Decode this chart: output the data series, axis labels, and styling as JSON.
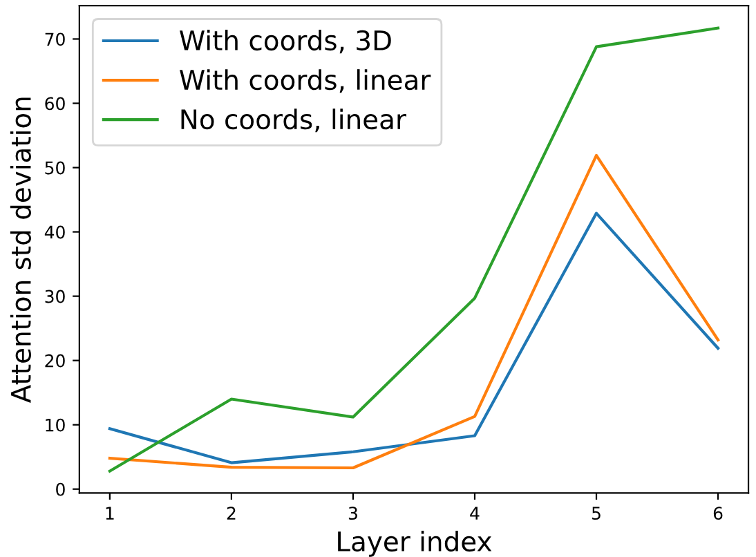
{
  "chart_data": {
    "type": "line",
    "xlabel": "Layer index",
    "ylabel": "Attention std deviation",
    "x": [
      1,
      2,
      3,
      4,
      5,
      6
    ],
    "series": [
      {
        "name": "With coords, 3D",
        "color": "#1f77b4",
        "values": [
          9.4,
          4.1,
          5.8,
          8.3,
          42.9,
          21.9
        ]
      },
      {
        "name": "With coords, linear",
        "color": "#ff7f0e",
        "values": [
          4.8,
          3.4,
          3.3,
          11.3,
          51.9,
          23.2
        ]
      },
      {
        "name": "No coords, linear",
        "color": "#2ca02c",
        "values": [
          2.8,
          14.0,
          11.2,
          29.7,
          68.8,
          71.7
        ]
      }
    ],
    "xlim": [
      0.75,
      6.25
    ],
    "ylim": [
      -0.6,
      75.2
    ],
    "xticks": [
      1,
      2,
      3,
      4,
      5,
      6
    ],
    "yticks": [
      0,
      10,
      20,
      30,
      40,
      50,
      60,
      70
    ],
    "grid": false,
    "legend": "top left",
    "marker": "none",
    "line_style": "solid"
  }
}
